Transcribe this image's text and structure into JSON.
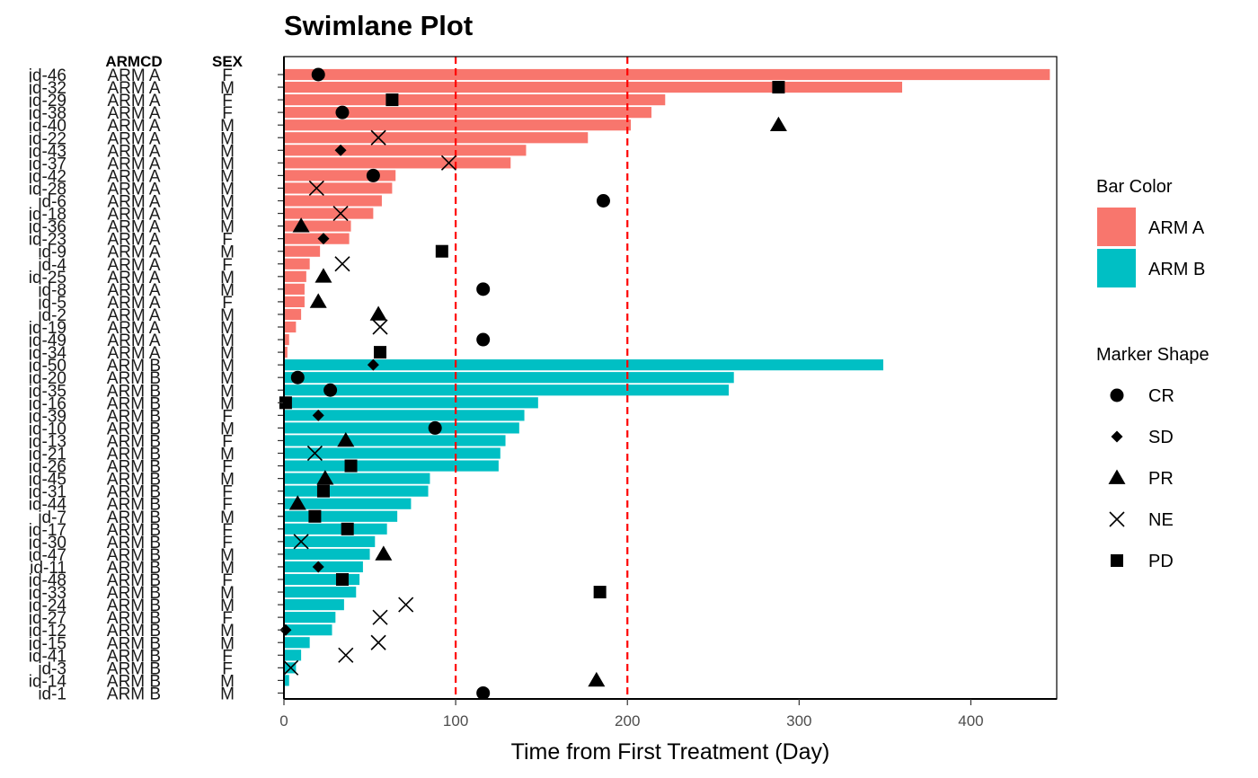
{
  "chart_data": {
    "type": "bar",
    "orientation": "horizontal",
    "title": "Swimlane Plot",
    "xlabel": "Time from First Treatment (Day)",
    "ylabel": "",
    "xlim": [
      0,
      450
    ],
    "x_ticks": [
      "0",
      "100",
      "200",
      "300",
      "400"
    ],
    "x_tick_values": [
      0,
      100,
      200,
      300,
      400
    ],
    "reference_lines": [
      100,
      200
    ],
    "reference_line_color": "#ff0000",
    "grid": false,
    "legend_placement": "right",
    "column_headers": {
      "armcd": "ARMCD",
      "sex": "SEX"
    },
    "bar_color_legend": {
      "title": "Bar Color",
      "entries": [
        {
          "label": "ARM A",
          "color": "#F8766D"
        },
        {
          "label": "ARM B",
          "color": "#00BFC4"
        }
      ]
    },
    "marker_shape_legend": {
      "title": "Marker Shape",
      "entries": [
        {
          "label": "CR",
          "shape": "circle"
        },
        {
          "label": "SD",
          "shape": "diamond"
        },
        {
          "label": "PR",
          "shape": "triangle"
        },
        {
          "label": "NE",
          "shape": "cross"
        },
        {
          "label": "PD",
          "shape": "square"
        }
      ]
    },
    "rows": [
      {
        "id": "id-46",
        "arm": "ARM A",
        "sex": "F",
        "value": 446,
        "marker": "CR",
        "marker_x": 20
      },
      {
        "id": "id-32",
        "arm": "ARM A",
        "sex": "M",
        "value": 360,
        "marker": "PD",
        "marker_x": 288
      },
      {
        "id": "id-29",
        "arm": "ARM A",
        "sex": "F",
        "value": 222,
        "marker": "PD",
        "marker_x": 63
      },
      {
        "id": "id-38",
        "arm": "ARM A",
        "sex": "F",
        "value": 214,
        "marker": "CR",
        "marker_x": 34
      },
      {
        "id": "id-40",
        "arm": "ARM A",
        "sex": "M",
        "value": 202,
        "marker": "PR",
        "marker_x": 288
      },
      {
        "id": "id-22",
        "arm": "ARM A",
        "sex": "M",
        "value": 177,
        "marker": "NE",
        "marker_x": 55
      },
      {
        "id": "id-43",
        "arm": "ARM A",
        "sex": "M",
        "value": 141,
        "marker": "SD",
        "marker_x": 33
      },
      {
        "id": "id-37",
        "arm": "ARM A",
        "sex": "M",
        "value": 132,
        "marker": "NE",
        "marker_x": 96
      },
      {
        "id": "id-42",
        "arm": "ARM A",
        "sex": "M",
        "value": 65,
        "marker": "CR",
        "marker_x": 52
      },
      {
        "id": "id-28",
        "arm": "ARM A",
        "sex": "M",
        "value": 63,
        "marker": "NE",
        "marker_x": 19
      },
      {
        "id": "id-6",
        "arm": "ARM A",
        "sex": "M",
        "value": 57,
        "marker": "CR",
        "marker_x": 186
      },
      {
        "id": "id-18",
        "arm": "ARM A",
        "sex": "M",
        "value": 52,
        "marker": "NE",
        "marker_x": 33
      },
      {
        "id": "id-36",
        "arm": "ARM A",
        "sex": "M",
        "value": 39,
        "marker": "PR",
        "marker_x": 10
      },
      {
        "id": "id-23",
        "arm": "ARM A",
        "sex": "F",
        "value": 38,
        "marker": "SD",
        "marker_x": 23
      },
      {
        "id": "id-9",
        "arm": "ARM A",
        "sex": "M",
        "value": 21,
        "marker": "PD",
        "marker_x": 92
      },
      {
        "id": "id-4",
        "arm": "ARM A",
        "sex": "F",
        "value": 15,
        "marker": "NE",
        "marker_x": 34
      },
      {
        "id": "id-25",
        "arm": "ARM A",
        "sex": "M",
        "value": 13,
        "marker": "PR",
        "marker_x": 23
      },
      {
        "id": "id-8",
        "arm": "ARM A",
        "sex": "M",
        "value": 12,
        "marker": "CR",
        "marker_x": 116
      },
      {
        "id": "id-5",
        "arm": "ARM A",
        "sex": "F",
        "value": 12,
        "marker": "PR",
        "marker_x": 20
      },
      {
        "id": "id-2",
        "arm": "ARM A",
        "sex": "M",
        "value": 10,
        "marker": "PR",
        "marker_x": 55
      },
      {
        "id": "id-19",
        "arm": "ARM A",
        "sex": "M",
        "value": 7,
        "marker": "NE",
        "marker_x": 56
      },
      {
        "id": "id-49",
        "arm": "ARM A",
        "sex": "M",
        "value": 3,
        "marker": "CR",
        "marker_x": 116
      },
      {
        "id": "id-34",
        "arm": "ARM A",
        "sex": "M",
        "value": 2,
        "marker": "PD",
        "marker_x": 56
      },
      {
        "id": "id-50",
        "arm": "ARM B",
        "sex": "M",
        "value": 349,
        "marker": "SD",
        "marker_x": 52
      },
      {
        "id": "id-20",
        "arm": "ARM B",
        "sex": "M",
        "value": 262,
        "marker": "CR",
        "marker_x": 8
      },
      {
        "id": "id-35",
        "arm": "ARM B",
        "sex": "M",
        "value": 259,
        "marker": "CR",
        "marker_x": 27
      },
      {
        "id": "id-16",
        "arm": "ARM B",
        "sex": "M",
        "value": 148,
        "marker": "PD",
        "marker_x": 1
      },
      {
        "id": "id-39",
        "arm": "ARM B",
        "sex": "F",
        "value": 140,
        "marker": "SD",
        "marker_x": 20
      },
      {
        "id": "id-10",
        "arm": "ARM B",
        "sex": "M",
        "value": 137,
        "marker": "CR",
        "marker_x": 88
      },
      {
        "id": "id-13",
        "arm": "ARM B",
        "sex": "F",
        "value": 129,
        "marker": "PR",
        "marker_x": 36
      },
      {
        "id": "id-21",
        "arm": "ARM B",
        "sex": "M",
        "value": 126,
        "marker": "NE",
        "marker_x": 18
      },
      {
        "id": "id-26",
        "arm": "ARM B",
        "sex": "F",
        "value": 125,
        "marker": "PD",
        "marker_x": 39
      },
      {
        "id": "id-45",
        "arm": "ARM B",
        "sex": "M",
        "value": 85,
        "marker": "PR",
        "marker_x": 24
      },
      {
        "id": "id-31",
        "arm": "ARM B",
        "sex": "F",
        "value": 84,
        "marker": "PD",
        "marker_x": 23
      },
      {
        "id": "id-44",
        "arm": "ARM B",
        "sex": "F",
        "value": 74,
        "marker": "PR",
        "marker_x": 8
      },
      {
        "id": "id-7",
        "arm": "ARM B",
        "sex": "M",
        "value": 66,
        "marker": "PD",
        "marker_x": 18
      },
      {
        "id": "id-17",
        "arm": "ARM B",
        "sex": "F",
        "value": 60,
        "marker": "PD",
        "marker_x": 37
      },
      {
        "id": "id-30",
        "arm": "ARM B",
        "sex": "F",
        "value": 53,
        "marker": "NE",
        "marker_x": 10
      },
      {
        "id": "id-47",
        "arm": "ARM B",
        "sex": "M",
        "value": 50,
        "marker": "PR",
        "marker_x": 58
      },
      {
        "id": "id-11",
        "arm": "ARM B",
        "sex": "M",
        "value": 46,
        "marker": "SD",
        "marker_x": 20
      },
      {
        "id": "id-48",
        "arm": "ARM B",
        "sex": "F",
        "value": 44,
        "marker": "PD",
        "marker_x": 34
      },
      {
        "id": "id-33",
        "arm": "ARM B",
        "sex": "M",
        "value": 42,
        "marker": "PD",
        "marker_x": 184
      },
      {
        "id": "id-24",
        "arm": "ARM B",
        "sex": "M",
        "value": 35,
        "marker": "NE",
        "marker_x": 71
      },
      {
        "id": "id-27",
        "arm": "ARM B",
        "sex": "F",
        "value": 30,
        "marker": "NE",
        "marker_x": 56
      },
      {
        "id": "id-12",
        "arm": "ARM B",
        "sex": "M",
        "value": 28,
        "marker": "SD",
        "marker_x": 1
      },
      {
        "id": "id-15",
        "arm": "ARM B",
        "sex": "M",
        "value": 15,
        "marker": "NE",
        "marker_x": 55
      },
      {
        "id": "id-41",
        "arm": "ARM B",
        "sex": "F",
        "value": 10,
        "marker": "NE",
        "marker_x": 36
      },
      {
        "id": "id-3",
        "arm": "ARM B",
        "sex": "F",
        "value": 7,
        "marker": "NE",
        "marker_x": 4
      },
      {
        "id": "id-14",
        "arm": "ARM B",
        "sex": "M",
        "value": 3,
        "marker": "PR",
        "marker_x": 182
      },
      {
        "id": "id-1",
        "arm": "ARM B",
        "sex": "M",
        "value": 0,
        "marker": "CR",
        "marker_x": 116
      }
    ]
  }
}
